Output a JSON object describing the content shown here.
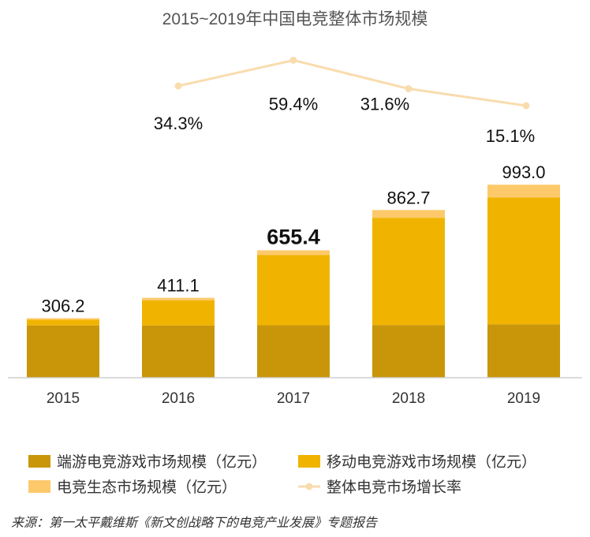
{
  "chart_data": {
    "type": "bar",
    "stacked": true,
    "title": "2015~2019年中国电竞整体市场规模",
    "categories": [
      "2015",
      "2016",
      "2017",
      "2018",
      "2019"
    ],
    "series": [
      {
        "name": "端游电竞游戏市场规模（亿元）",
        "color": "#c9960a",
        "values": [
          269.0,
          269.0,
          270.0,
          271.0,
          275.0
        ]
      },
      {
        "name": "移动电竞游戏市场规模（亿元）",
        "color": "#f0b400",
        "values": [
          30.0,
          129.0,
          361.0,
          552.0,
          653.0
        ]
      },
      {
        "name": "电竞生态市场规模（亿元）",
        "color": "#fdc96b",
        "values": [
          7.2,
          13.1,
          24.4,
          39.7,
          65.0
        ]
      }
    ],
    "totals": [
      "306.2",
      "411.1",
      "655.4",
      "862.7",
      "993.0"
    ],
    "growth": {
      "name": "整体电竞市场增长率",
      "color": "#f9dcae",
      "points": [
        {
          "x": "2016",
          "value": 34.3,
          "label": "34.3%"
        },
        {
          "x": "2017",
          "value": 59.4,
          "label": "59.4%"
        },
        {
          "x": "2018",
          "value": 31.6,
          "label": "31.6%"
        },
        {
          "x": "2019",
          "value": 15.1,
          "label": "15.1%"
        }
      ]
    },
    "grid": false,
    "legend_position": "bottom"
  },
  "source": "来源：第一太平戴维斯《新文创战略下的电竞产业发展》专题报告"
}
